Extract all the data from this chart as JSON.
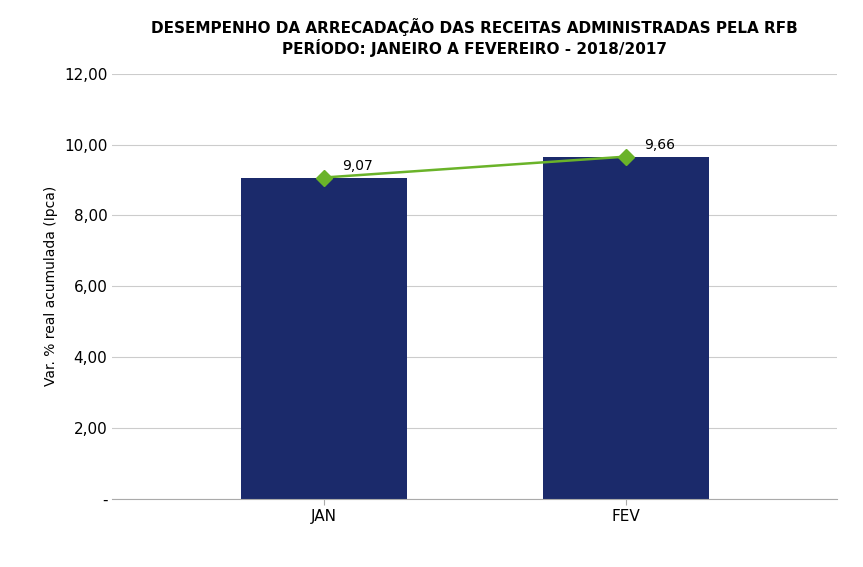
{
  "title_line1": "DESEMPENHO DA ARRECADAÇÃO DAS RECEITAS ADMINISTRADAS PELA RFB",
  "title_line2": "PERÍODO: JANEIRO A FEVEREIRO - 2018/2017",
  "categories": [
    "JAN",
    "FEV"
  ],
  "bar_values": [
    9.07,
    9.66
  ],
  "line_values": [
    9.07,
    9.66
  ],
  "bar_color": "#1B2A6B",
  "line_color": "#6AB329",
  "marker_color": "#6AB329",
  "ylabel": "Var. % real acumulada (Ipca)",
  "ylim_min": 0,
  "ylim_max": 12.0,
  "yticks": [
    0,
    2.0,
    4.0,
    6.0,
    8.0,
    10.0,
    12.0
  ],
  "ytick_labels": [
    "-",
    "2,00",
    "4,00",
    "6,00",
    "8,00",
    "10,00",
    "12,00"
  ],
  "bar_width": 0.55,
  "title_fontsize": 11,
  "label_fontsize": 10,
  "tick_fontsize": 11,
  "annotation_fontsize": 10,
  "background_color": "#ffffff",
  "grid_color": "#cccccc"
}
